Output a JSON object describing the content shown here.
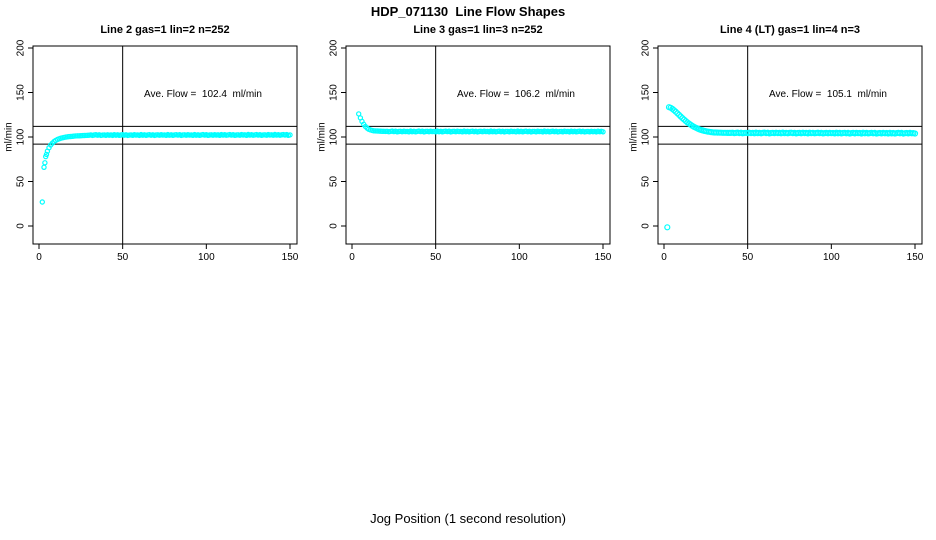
{
  "figure": {
    "title": "HDP_071130  Line Flow Shapes",
    "xlabel": "Jog Position (1 second resolution)",
    "point_color": "#00ffff",
    "line_color": "#000000"
  },
  "jitter_pattern": [
    0.25,
    -0.3,
    0.1,
    0.4,
    -0.15,
    0.3,
    -0.4,
    0,
    0.2,
    -0.25,
    0.35,
    -0.1,
    0.15,
    -0.35,
    0.45,
    -0.2
  ],
  "chart_data": [
    {
      "type": "scatter",
      "panel_title": "Line 2 gas=1 lin=2 n=252",
      "annotation": "Ave. Flow =  102.4  ml/min",
      "ave_flow_ml_min": 102.4,
      "n": 252,
      "ylabel": "ml/min",
      "xticks": [
        0,
        50,
        100,
        150
      ],
      "yticks": [
        0,
        50,
        100,
        150,
        200
      ],
      "xlim": [
        0,
        150
      ],
      "ylim": [
        0,
        200
      ],
      "vline_x": 50,
      "hlines": [
        112,
        92
      ],
      "annotation_pos": [
        98,
        148
      ],
      "points": [
        [
          2,
          27
        ],
        [
          3,
          66
        ],
        [
          3.5,
          71
        ],
        [
          4,
          78
        ],
        [
          4.5,
          80.5
        ],
        [
          5,
          84
        ],
        [
          6,
          88
        ],
        [
          7,
          91
        ],
        [
          8,
          93.2
        ],
        [
          9,
          94.9
        ],
        [
          10,
          96.2
        ],
        [
          11,
          97.2
        ],
        [
          12,
          98
        ],
        [
          13,
          98.6
        ],
        [
          14,
          99.1
        ],
        [
          15,
          99.5
        ],
        [
          16,
          99.9
        ],
        [
          17,
          100.2
        ],
        [
          18,
          100.4
        ],
        [
          19,
          100.6
        ],
        [
          20,
          100.8
        ],
        [
          21,
          101
        ],
        [
          22,
          101.2
        ],
        [
          23,
          101.3
        ],
        [
          24,
          101.4
        ],
        [
          25,
          101.5
        ],
        [
          26,
          101.6
        ],
        [
          27,
          101.7
        ],
        [
          28,
          101.8
        ],
        [
          29,
          101.9
        ],
        [
          30,
          102
        ]
      ],
      "flat_band": {
        "x_from": 31,
        "x_to": 150,
        "x_step": 1,
        "y_start": 102.15,
        "y_end": 102.35
      }
    },
    {
      "type": "scatter",
      "panel_title": "Line 3 gas=1 lin=3 n=252",
      "annotation": "Ave. Flow =  106.2  ml/min",
      "ave_flow_ml_min": 106.2,
      "n": 252,
      "ylabel": "ml/min",
      "xticks": [
        0,
        50,
        100,
        150
      ],
      "yticks": [
        0,
        50,
        100,
        150,
        200
      ],
      "xlim": [
        0,
        150
      ],
      "ylim": [
        0,
        200
      ],
      "vline_x": 50,
      "hlines": [
        112,
        92
      ],
      "annotation_pos": [
        98,
        148
      ],
      "points": [
        [
          4,
          126
        ],
        [
          5,
          121.5
        ],
        [
          6,
          117.5
        ],
        [
          7,
          114.3
        ],
        [
          8,
          111.8
        ],
        [
          9,
          110
        ],
        [
          10,
          108.8
        ],
        [
          11,
          108
        ],
        [
          12,
          107.4
        ],
        [
          13,
          107
        ],
        [
          14,
          106.8
        ],
        [
          15,
          106.7
        ],
        [
          16,
          106.6
        ],
        [
          17,
          106.5
        ],
        [
          18,
          106.45
        ],
        [
          19,
          106.4
        ],
        [
          20,
          106.3
        ]
      ],
      "flat_band": {
        "x_from": 21,
        "x_to": 150,
        "x_step": 1,
        "y_start": 106.2,
        "y_end": 106.1
      }
    },
    {
      "type": "scatter",
      "panel_title": "Line 4 (LT) gas=1 lin=4 n=3",
      "annotation": "Ave. Flow =  105.1  ml/min",
      "ave_flow_ml_min": 105.1,
      "n": 3,
      "ylabel": "ml/min",
      "xticks": [
        0,
        50,
        100,
        150
      ],
      "yticks": [
        0,
        50,
        100,
        150,
        200
      ],
      "xlim": [
        0,
        150
      ],
      "ylim": [
        0,
        200
      ],
      "vline_x": 50,
      "hlines": [
        112,
        92
      ],
      "annotation_pos": [
        98,
        148
      ],
      "marker_r": 2.5,
      "points": [
        [
          2,
          -1.5
        ],
        [
          3,
          133.5
        ],
        [
          4,
          132.8
        ],
        [
          5,
          131.6
        ],
        [
          6,
          130.1
        ],
        [
          7,
          128.4
        ],
        [
          8,
          126.6
        ],
        [
          9,
          124.8
        ],
        [
          10,
          123
        ],
        [
          11,
          121.2
        ],
        [
          12,
          119.5
        ],
        [
          13,
          117.9
        ],
        [
          14,
          116.4
        ],
        [
          15,
          115
        ],
        [
          16,
          113.7
        ],
        [
          17,
          112.5
        ],
        [
          18,
          111.4
        ],
        [
          19,
          110.4
        ],
        [
          20,
          109.5
        ],
        [
          21,
          108.7
        ],
        [
          22,
          108
        ],
        [
          23,
          107.4
        ],
        [
          24,
          106.9
        ],
        [
          25,
          106.5
        ],
        [
          26,
          106.1
        ],
        [
          27,
          105.8
        ],
        [
          28,
          105.5
        ],
        [
          29,
          105.3
        ],
        [
          30,
          105.1
        ],
        [
          31,
          105
        ],
        [
          32,
          104.9
        ],
        [
          33,
          104.85
        ],
        [
          34,
          104.8
        ],
        [
          35,
          104.75
        ],
        [
          36,
          104.7
        ],
        [
          37,
          104.68
        ],
        [
          38,
          104.65
        ],
        [
          39,
          104.62
        ],
        [
          40,
          104.6
        ]
      ],
      "flat_band": {
        "x_from": 41,
        "x_to": 150,
        "x_step": 1,
        "y_start": 104.55,
        "y_end": 104.25
      }
    }
  ]
}
